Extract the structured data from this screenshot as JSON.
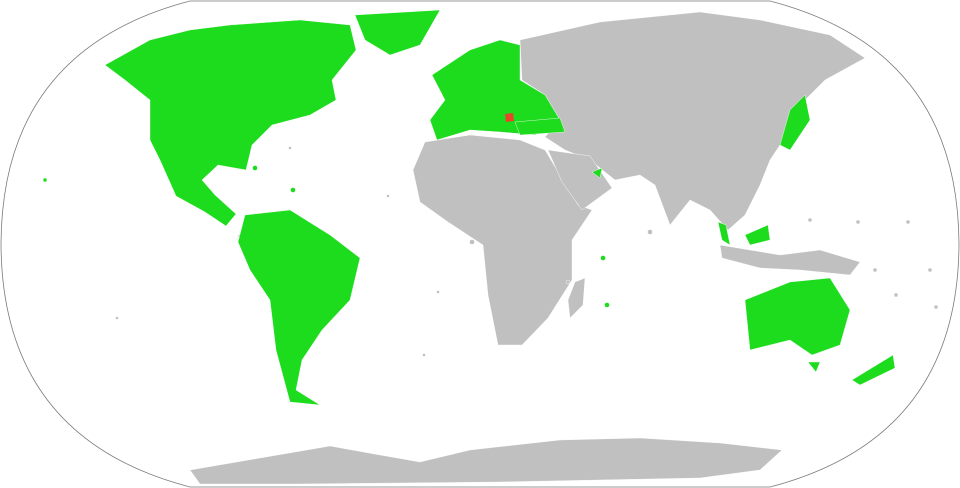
{
  "map": {
    "colors": {
      "highlighted": "#1ddb1d",
      "other": "#c0c0c0",
      "focus": "#e8452a",
      "ocean": "#ffffff",
      "border": "#7a7a7a"
    }
  }
}
